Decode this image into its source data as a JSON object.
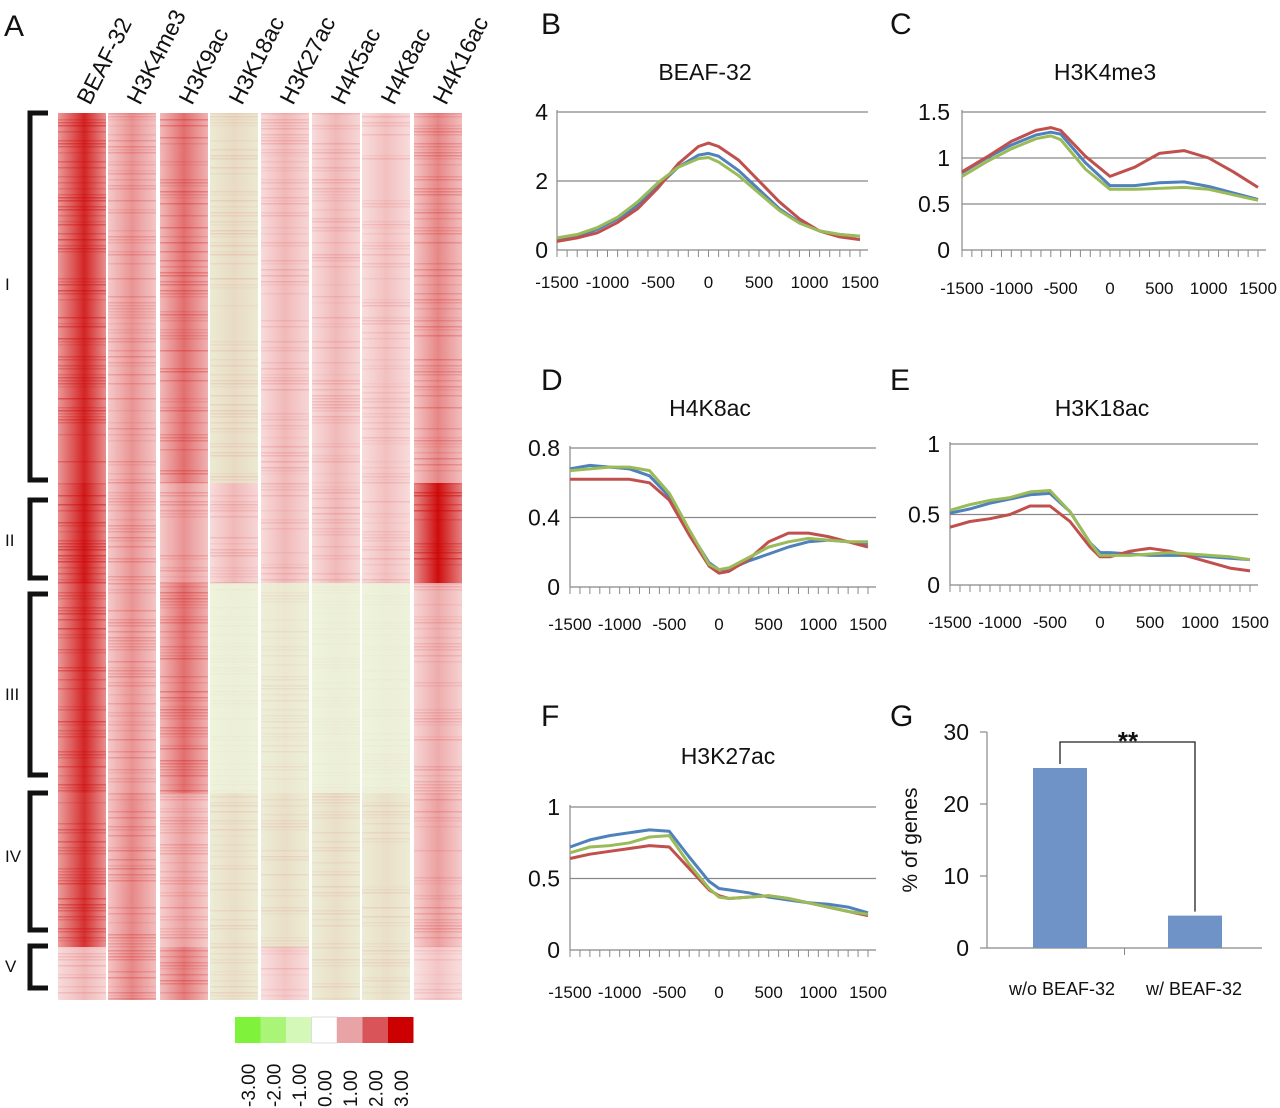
{
  "panel_letters": [
    "A",
    "B",
    "C",
    "D",
    "E",
    "F",
    "G"
  ],
  "heatmap": {
    "columns": [
      "BEAF-32",
      "H3K4me3",
      "H3K9ac",
      "H3K18ac",
      "H3K27ac",
      "H4K5ac",
      "H4K8ac",
      "H4K16ac"
    ],
    "clusters": [
      "I",
      "II",
      "III",
      "IV",
      "V"
    ],
    "legend": {
      "labels": [
        "-3.00",
        "-2.00",
        "-1.00",
        "0.00",
        "1.00",
        "2.00",
        "3.00"
      ],
      "colors": [
        "#7ff23b",
        "#aaf478",
        "#d4f8b8",
        "#ffffff",
        "#e8a3a6",
        "#d95459",
        "#cc0000"
      ]
    }
  },
  "series_colors": [
    "#4f81bd",
    "#c0504d",
    "#9bbb59"
  ],
  "chart_data": [
    {
      "panel": "B",
      "type": "line",
      "title": "BEAF-32",
      "x": [
        -1500,
        -1300,
        -1100,
        -900,
        -700,
        -500,
        -300,
        -100,
        0,
        100,
        300,
        500,
        700,
        900,
        1100,
        1300,
        1500
      ],
      "x_ticks": [
        "-1500",
        "-1000",
        "-500",
        "0",
        "500",
        "1000",
        "1500"
      ],
      "ylim": [
        0,
        4
      ],
      "y_ticks": [
        "0",
        "2",
        "4"
      ],
      "series": [
        {
          "name": "blue",
          "values": [
            0.3,
            0.4,
            0.6,
            0.9,
            1.3,
            1.85,
            2.4,
            2.75,
            2.8,
            2.72,
            2.3,
            1.75,
            1.2,
            0.8,
            0.55,
            0.45,
            0.4
          ]
        },
        {
          "name": "red",
          "values": [
            0.25,
            0.35,
            0.5,
            0.8,
            1.2,
            1.8,
            2.5,
            3.0,
            3.1,
            3.0,
            2.6,
            2.0,
            1.4,
            0.9,
            0.55,
            0.38,
            0.3
          ]
        },
        {
          "name": "green",
          "values": [
            0.35,
            0.45,
            0.65,
            0.95,
            1.4,
            1.95,
            2.4,
            2.65,
            2.68,
            2.55,
            2.15,
            1.65,
            1.15,
            0.78,
            0.55,
            0.45,
            0.4
          ]
        }
      ]
    },
    {
      "panel": "C",
      "type": "line",
      "title": "H3K4me3",
      "x": [
        -1500,
        -1250,
        -1000,
        -750,
        -600,
        -500,
        -250,
        0,
        250,
        500,
        750,
        1000,
        1250,
        1500
      ],
      "x_ticks": [
        "-1500",
        "-1000",
        "-500",
        "0",
        "500",
        "1000",
        "1500"
      ],
      "ylim": [
        0,
        1.5
      ],
      "y_ticks": [
        "0",
        "0.5",
        "1",
        "1.5"
      ],
      "series": [
        {
          "name": "blue",
          "values": [
            0.84,
            1.0,
            1.14,
            1.25,
            1.28,
            1.26,
            0.95,
            0.7,
            0.7,
            0.73,
            0.74,
            0.69,
            0.62,
            0.55
          ]
        },
        {
          "name": "red",
          "values": [
            0.85,
            1.01,
            1.18,
            1.3,
            1.33,
            1.3,
            1.02,
            0.8,
            0.9,
            1.05,
            1.08,
            1.0,
            0.85,
            0.68
          ]
        },
        {
          "name": "green",
          "values": [
            0.8,
            0.96,
            1.1,
            1.21,
            1.24,
            1.2,
            0.88,
            0.66,
            0.66,
            0.67,
            0.68,
            0.66,
            0.6,
            0.54
          ]
        }
      ]
    },
    {
      "panel": "D",
      "type": "line",
      "title": "H4K8ac",
      "x": [
        -1500,
        -1300,
        -1100,
        -900,
        -700,
        -500,
        -300,
        -100,
        0,
        100,
        300,
        500,
        700,
        900,
        1100,
        1300,
        1500
      ],
      "x_ticks": [
        "-1500",
        "-1000",
        "-500",
        "0",
        "500",
        "1000",
        "1500"
      ],
      "ylim": [
        0,
        0.8
      ],
      "y_ticks": [
        "0",
        "0.4",
        "0.8"
      ],
      "series": [
        {
          "name": "blue",
          "values": [
            0.68,
            0.7,
            0.69,
            0.68,
            0.64,
            0.52,
            0.32,
            0.14,
            0.1,
            0.1,
            0.15,
            0.19,
            0.23,
            0.26,
            0.27,
            0.26,
            0.25
          ]
        },
        {
          "name": "red",
          "values": [
            0.62,
            0.62,
            0.62,
            0.62,
            0.6,
            0.5,
            0.3,
            0.12,
            0.08,
            0.09,
            0.16,
            0.26,
            0.31,
            0.31,
            0.29,
            0.26,
            0.23
          ]
        },
        {
          "name": "green",
          "values": [
            0.67,
            0.68,
            0.69,
            0.69,
            0.67,
            0.54,
            0.33,
            0.13,
            0.1,
            0.11,
            0.17,
            0.23,
            0.26,
            0.28,
            0.27,
            0.26,
            0.26
          ]
        }
      ]
    },
    {
      "panel": "E",
      "type": "line",
      "title": "H3K18ac",
      "x": [
        -1500,
        -1300,
        -1100,
        -900,
        -700,
        -500,
        -300,
        -100,
        0,
        100,
        300,
        500,
        700,
        900,
        1100,
        1300,
        1500
      ],
      "x_ticks": [
        "-1500",
        "-1000",
        "-500",
        "0",
        "500",
        "1000",
        "1500"
      ],
      "ylim": [
        0,
        1
      ],
      "y_ticks": [
        "0",
        "0.5",
        "1"
      ],
      "series": [
        {
          "name": "blue",
          "values": [
            0.51,
            0.54,
            0.58,
            0.61,
            0.64,
            0.65,
            0.52,
            0.3,
            0.23,
            0.23,
            0.22,
            0.21,
            0.21,
            0.21,
            0.2,
            0.19,
            0.18
          ]
        },
        {
          "name": "red",
          "values": [
            0.41,
            0.45,
            0.47,
            0.5,
            0.56,
            0.56,
            0.45,
            0.27,
            0.2,
            0.2,
            0.24,
            0.26,
            0.24,
            0.2,
            0.16,
            0.12,
            0.1
          ]
        },
        {
          "name": "green",
          "values": [
            0.53,
            0.57,
            0.6,
            0.62,
            0.66,
            0.67,
            0.52,
            0.3,
            0.21,
            0.21,
            0.21,
            0.22,
            0.23,
            0.22,
            0.21,
            0.2,
            0.18
          ]
        }
      ]
    },
    {
      "panel": "F",
      "type": "line",
      "title": "H3K27ac",
      "x": [
        -1500,
        -1300,
        -1100,
        -900,
        -700,
        -500,
        -300,
        -100,
        0,
        100,
        300,
        500,
        700,
        900,
        1100,
        1300,
        1500
      ],
      "x_ticks": [
        "-1500",
        "-1000",
        "-500",
        "0",
        "500",
        "1000",
        "1500"
      ],
      "ylim": [
        0,
        1
      ],
      "y_ticks": [
        "0",
        "0.5",
        "1"
      ],
      "series": [
        {
          "name": "blue",
          "values": [
            0.72,
            0.77,
            0.8,
            0.82,
            0.84,
            0.83,
            0.65,
            0.48,
            0.43,
            0.42,
            0.4,
            0.37,
            0.35,
            0.33,
            0.32,
            0.3,
            0.26
          ]
        },
        {
          "name": "red",
          "values": [
            0.64,
            0.67,
            0.69,
            0.71,
            0.73,
            0.72,
            0.57,
            0.42,
            0.38,
            0.36,
            0.37,
            0.38,
            0.36,
            0.33,
            0.3,
            0.27,
            0.24
          ]
        },
        {
          "name": "green",
          "values": [
            0.68,
            0.72,
            0.73,
            0.75,
            0.79,
            0.8,
            0.6,
            0.43,
            0.37,
            0.36,
            0.37,
            0.38,
            0.36,
            0.33,
            0.3,
            0.27,
            0.25
          ]
        }
      ]
    },
    {
      "panel": "G",
      "type": "bar",
      "categories": [
        "w/o BEAF-32",
        "w/ BEAF-32"
      ],
      "values": [
        25,
        4.5
      ],
      "ylim": [
        0,
        30
      ],
      "y_ticks": [
        "0",
        "10",
        "20",
        "30"
      ],
      "ylabel": "% of genes",
      "significance": "**"
    }
  ]
}
